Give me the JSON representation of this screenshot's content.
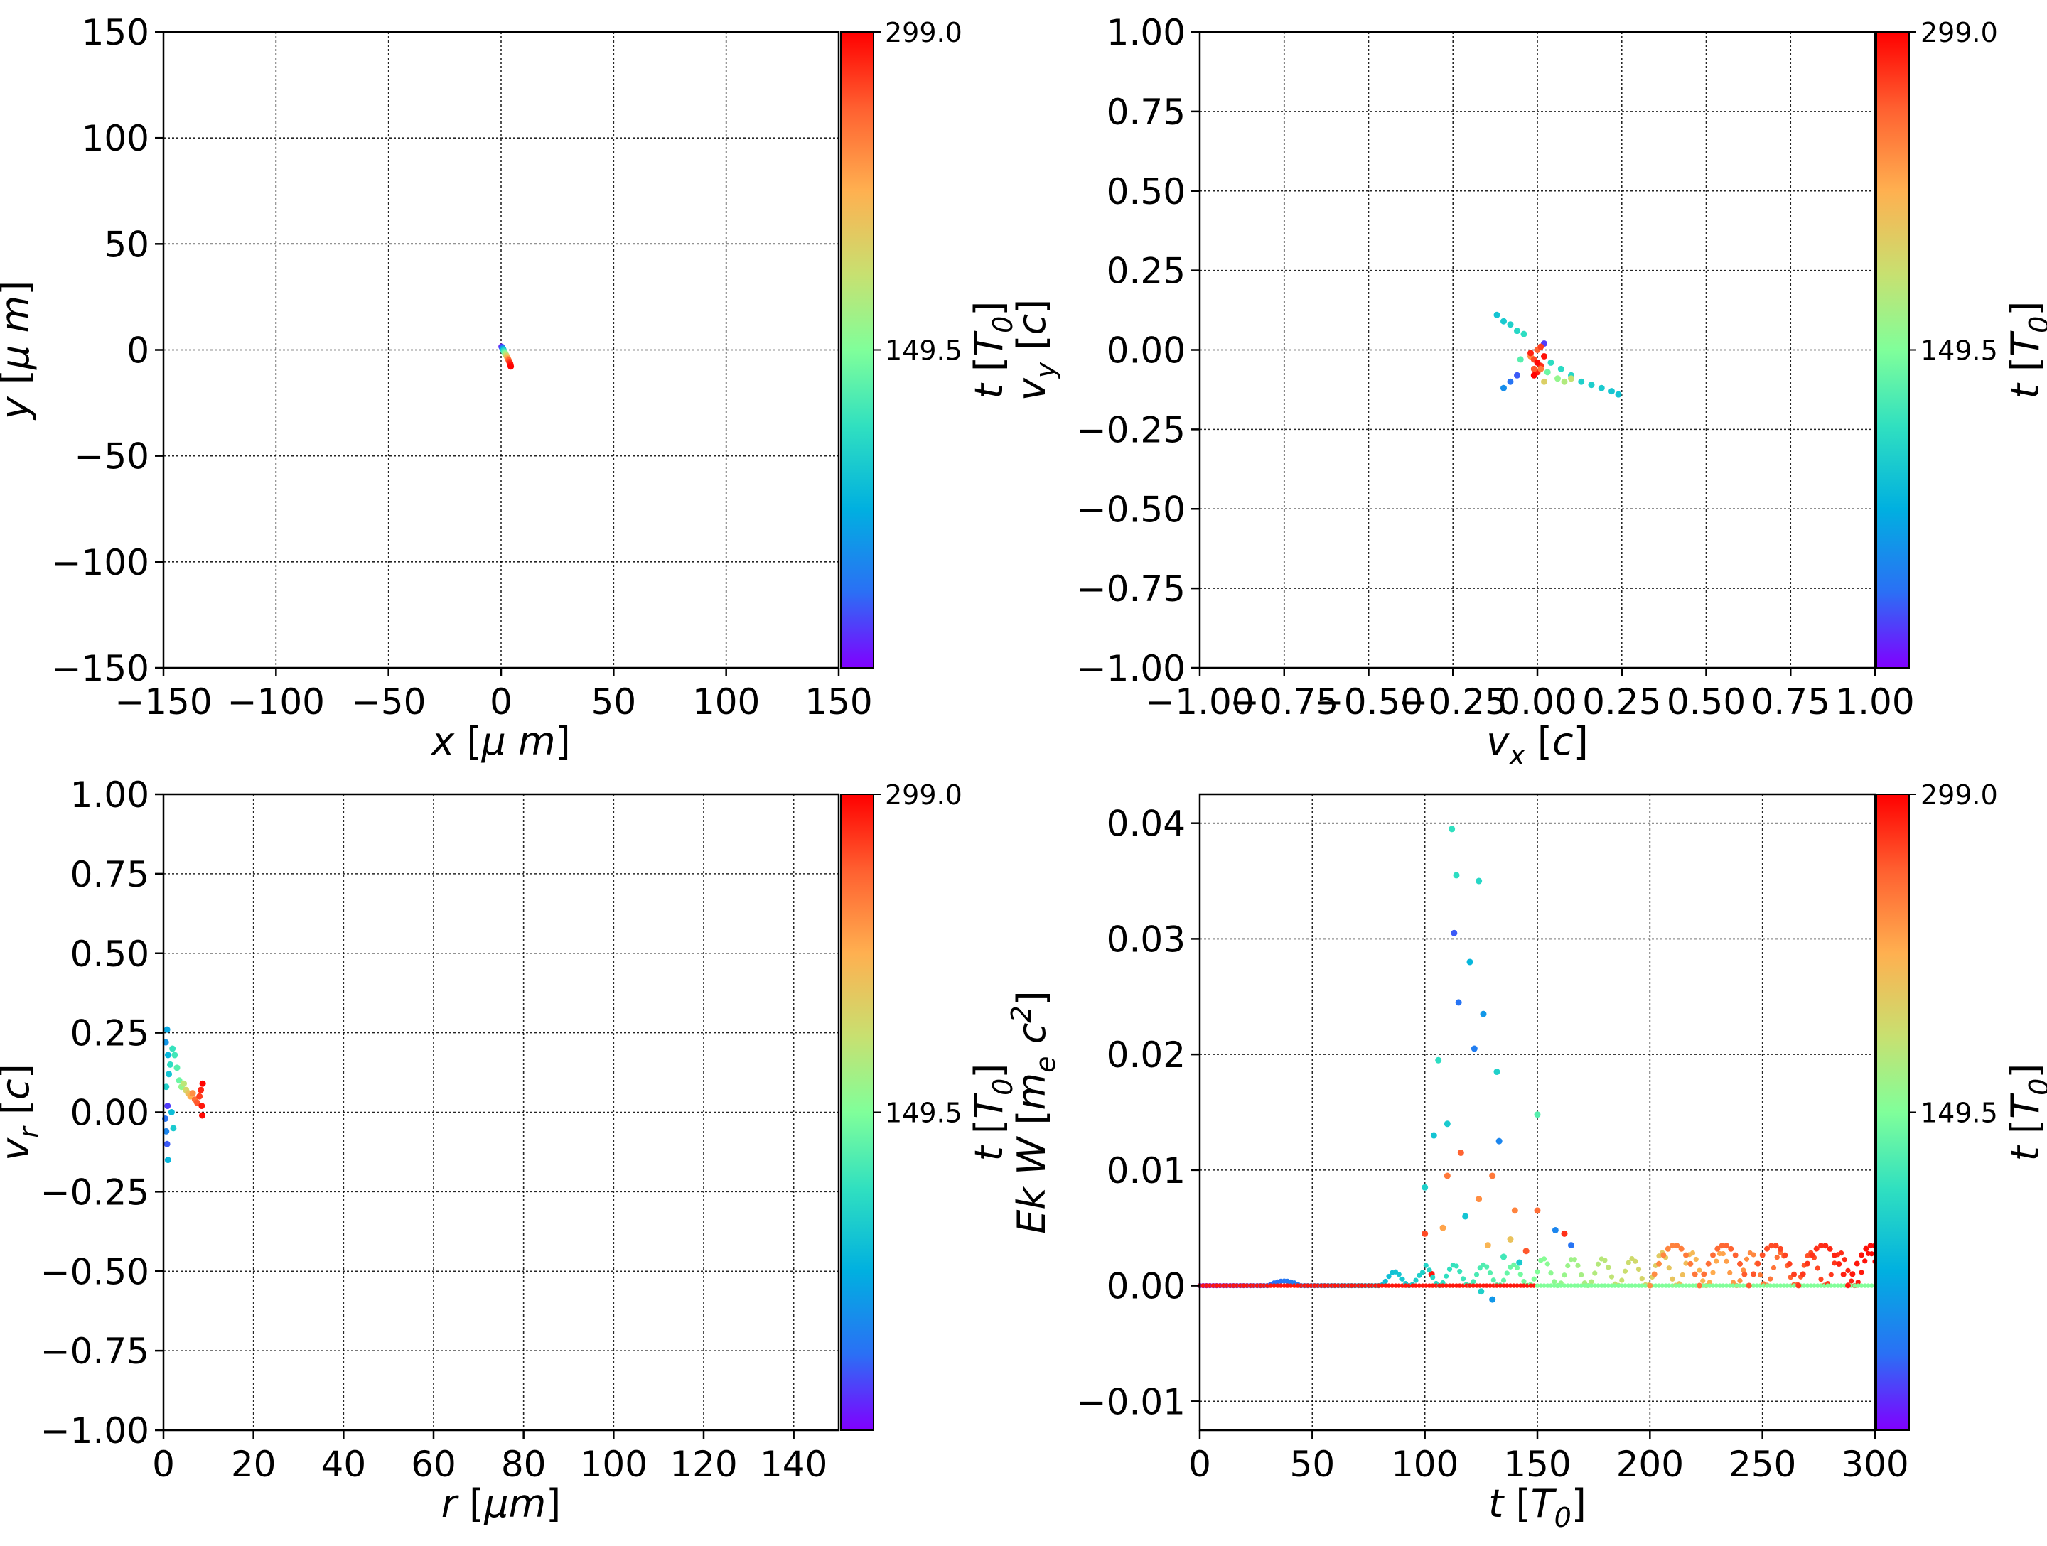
{
  "colorbar": {
    "label": "t [T_0]",
    "ticks": [
      "299.0",
      "149.5"
    ],
    "range": [
      0,
      299
    ],
    "colormap": [
      "#8000ff",
      "#2a70f5",
      "#00b0e0",
      "#30e0c0",
      "#80ff9a",
      "#c8e070",
      "#ffb050",
      "#ff6030",
      "#ff0000"
    ]
  },
  "chart_data": [
    {
      "type": "scatter",
      "name": "position",
      "xlabel": "x  [μ m]",
      "ylabel": "y  [μ m]",
      "xlim": [
        -150,
        150
      ],
      "ylim": [
        -150,
        150
      ],
      "xticks": [
        -150,
        -100,
        -50,
        0,
        50,
        100,
        150
      ],
      "yticks": [
        -150,
        -100,
        -50,
        0,
        50,
        100,
        150
      ],
      "xtick_labels": [
        "−150",
        "−100",
        "−50",
        "0",
        "50",
        "100",
        "150"
      ],
      "ytick_labels": [
        "−150",
        "−100",
        "−50",
        "0",
        "50",
        "100",
        "150"
      ],
      "grid": true,
      "points": [
        [
          0.2,
          1.5,
          10
        ],
        [
          0.4,
          1.2,
          25
        ],
        [
          0.6,
          0.8,
          40
        ],
        [
          0.8,
          0.5,
          60
        ],
        [
          1.0,
          0.2,
          80
        ],
        [
          1.1,
          -0.3,
          100
        ],
        [
          1.3,
          -0.8,
          120
        ],
        [
          1.6,
          -1.2,
          140
        ],
        [
          1.9,
          -1.8,
          160
        ],
        [
          2.2,
          -2.4,
          180
        ],
        [
          2.5,
          -3.0,
          200
        ],
        [
          2.8,
          -3.6,
          220
        ],
        [
          3.1,
          -4.3,
          240
        ],
        [
          3.4,
          -5.0,
          260
        ],
        [
          3.7,
          -5.7,
          275
        ],
        [
          4.0,
          -6.4,
          285
        ],
        [
          4.2,
          -7.2,
          292
        ],
        [
          4.3,
          -7.8,
          298
        ]
      ],
      "grid_on": true
    },
    {
      "type": "scatter",
      "name": "velocity",
      "xlabel": "v_x [c]",
      "ylabel": "v_y [c]",
      "xlim": [
        -1.0,
        1.0
      ],
      "ylim": [
        -1.0,
        1.0
      ],
      "xticks": [
        -1.0,
        -0.75,
        -0.5,
        -0.25,
        0.0,
        0.25,
        0.5,
        0.75,
        1.0
      ],
      "yticks": [
        -1.0,
        -0.75,
        -0.5,
        -0.25,
        0.0,
        0.25,
        0.5,
        0.75,
        1.0
      ],
      "xtick_labels": [
        "−1.00",
        "−0.75",
        "−0.50",
        "−0.25",
        "0.00",
        "0.25",
        "0.50",
        "0.75",
        "1.00"
      ],
      "ytick_labels": [
        "−1.00",
        "−0.75",
        "−0.50",
        "−0.25",
        "0.00",
        "0.25",
        "0.50",
        "0.75",
        "1.00"
      ],
      "grid": true,
      "points": [
        [
          -0.12,
          0.11,
          90
        ],
        [
          -0.1,
          0.09,
          95
        ],
        [
          -0.08,
          0.08,
          100
        ],
        [
          -0.06,
          0.06,
          105
        ],
        [
          -0.04,
          0.05,
          110
        ],
        [
          0.04,
          -0.04,
          110
        ],
        [
          0.07,
          -0.06,
          108
        ],
        [
          0.1,
          -0.08,
          104
        ],
        [
          0.13,
          -0.1,
          100
        ],
        [
          0.16,
          -0.11,
          98
        ],
        [
          0.19,
          -0.12,
          95
        ],
        [
          0.22,
          -0.13,
          92
        ],
        [
          0.24,
          -0.14,
          90
        ],
        [
          -0.05,
          -0.03,
          130
        ],
        [
          0.03,
          -0.07,
          140
        ],
        [
          0.06,
          -0.09,
          160
        ],
        [
          0.08,
          -0.1,
          175
        ],
        [
          0.1,
          -0.09,
          185
        ],
        [
          0.02,
          -0.1,
          200
        ],
        [
          -0.06,
          -0.08,
          30
        ],
        [
          -0.08,
          -0.1,
          40
        ],
        [
          -0.1,
          -0.12,
          55
        ],
        [
          0.02,
          0.02,
          20
        ],
        [
          -0.02,
          -0.02,
          240
        ],
        [
          0.0,
          0.0,
          260
        ],
        [
          -0.01,
          -0.03,
          270
        ],
        [
          0.01,
          -0.05,
          280
        ],
        [
          0.0,
          -0.07,
          290
        ],
        [
          -0.01,
          -0.08,
          298
        ],
        [
          0.01,
          0.01,
          275
        ],
        [
          -0.02,
          -0.01,
          285
        ],
        [
          0.02,
          -0.02,
          292
        ],
        [
          0.0,
          -0.04,
          296
        ],
        [
          -0.01,
          -0.06,
          265
        ],
        [
          0.01,
          -0.06,
          250
        ]
      ]
    },
    {
      "type": "scatter",
      "name": "radial-velocity",
      "xlabel": "r [μm]",
      "ylabel": "v_r [c]",
      "xlim": [
        0,
        150
      ],
      "ylim": [
        -1.0,
        1.0
      ],
      "xticks": [
        0,
        20,
        40,
        60,
        80,
        100,
        120,
        140
      ],
      "yticks": [
        -1.0,
        -0.75,
        -0.5,
        -0.25,
        0.0,
        0.25,
        0.5,
        0.75,
        1.0
      ],
      "xtick_labels": [
        "0",
        "20",
        "40",
        "60",
        "80",
        "100",
        "120",
        "140"
      ],
      "ytick_labels": [
        "−1.00",
        "−0.75",
        "−0.50",
        "−0.25",
        "0.00",
        "0.25",
        "0.50",
        "0.75",
        "1.00"
      ],
      "grid": true,
      "points": [
        [
          0.5,
          0.22,
          60
        ],
        [
          0.8,
          0.26,
          70
        ],
        [
          1.0,
          0.18,
          80
        ],
        [
          1.2,
          0.12,
          90
        ],
        [
          0.6,
          0.08,
          100
        ],
        [
          0.4,
          -0.02,
          40
        ],
        [
          0.6,
          -0.06,
          50
        ],
        [
          0.8,
          -0.1,
          30
        ],
        [
          1.0,
          -0.15,
          80
        ],
        [
          0.9,
          0.02,
          20
        ],
        [
          1.5,
          0.15,
          110
        ],
        [
          2.0,
          0.2,
          115
        ],
        [
          2.5,
          0.18,
          120
        ],
        [
          3.0,
          0.14,
          130
        ],
        [
          3.5,
          0.1,
          140
        ],
        [
          4.0,
          0.08,
          160
        ],
        [
          4.5,
          0.09,
          180
        ],
        [
          5.0,
          0.07,
          195
        ],
        [
          5.5,
          0.06,
          210
        ],
        [
          6.0,
          0.05,
          225
        ],
        [
          6.5,
          0.06,
          240
        ],
        [
          7.0,
          0.04,
          255
        ],
        [
          7.5,
          0.03,
          265
        ],
        [
          8.0,
          0.05,
          275
        ],
        [
          8.3,
          0.07,
          285
        ],
        [
          8.5,
          0.02,
          290
        ],
        [
          8.6,
          -0.01,
          295
        ],
        [
          8.7,
          0.09,
          298
        ],
        [
          2.2,
          -0.05,
          95
        ],
        [
          1.8,
          0.0,
          85
        ]
      ]
    },
    {
      "type": "scatter",
      "name": "energy",
      "xlabel": "t [T_0]",
      "ylabel": "Ek W [m_e c^2]",
      "xlim": [
        0,
        300
      ],
      "ylim": [
        -0.0125,
        0.0425
      ],
      "xticks": [
        0,
        50,
        100,
        150,
        200,
        250,
        300
      ],
      "yticks": [
        -0.01,
        0.0,
        0.01,
        0.02,
        0.03,
        0.04
      ],
      "xtick_labels": [
        "0",
        "50",
        "100",
        "150",
        "200",
        "250",
        "300"
      ],
      "ytick_labels": [
        "−0.01",
        "0.00",
        "0.01",
        "0.02",
        "0.03",
        "0.04"
      ],
      "grid": true,
      "points": [
        [
          100,
          0.0085,
          100
        ],
        [
          104,
          0.013,
          90
        ],
        [
          106,
          0.0195,
          110
        ],
        [
          110,
          0.014,
          95
        ],
        [
          112,
          0.0395,
          112
        ],
        [
          113,
          0.0305,
          30
        ],
        [
          114,
          0.0355,
          110
        ],
        [
          115,
          0.0245,
          40
        ],
        [
          120,
          0.028,
          80
        ],
        [
          122,
          0.0205,
          45
        ],
        [
          124,
          0.035,
          105
        ],
        [
          126,
          0.0235,
          60
        ],
        [
          132,
          0.0185,
          100
        ],
        [
          133,
          0.0125,
          50
        ],
        [
          110,
          0.0095,
          250
        ],
        [
          116,
          0.0115,
          260
        ],
        [
          124,
          0.0075,
          240
        ],
        [
          130,
          0.0095,
          250
        ],
        [
          140,
          0.0065,
          245
        ],
        [
          150,
          0.0065,
          255
        ],
        [
          150,
          0.0148,
          130
        ],
        [
          162,
          0.0045,
          280
        ],
        [
          100,
          0.0045,
          270
        ],
        [
          108,
          0.005,
          230
        ],
        [
          118,
          0.006,
          90
        ],
        [
          128,
          0.0035,
          220
        ],
        [
          138,
          0.004,
          210
        ],
        [
          145,
          0.003,
          265
        ],
        [
          158,
          0.0048,
          50
        ],
        [
          165,
          0.0035,
          40
        ],
        [
          125,
          -0.0005,
          100
        ],
        [
          130,
          -0.0012,
          60
        ],
        [
          135,
          0.0025,
          120
        ],
        [
          142,
          0.002,
          95
        ],
        [
          103,
          0.001,
          290
        ]
      ]
    }
  ]
}
